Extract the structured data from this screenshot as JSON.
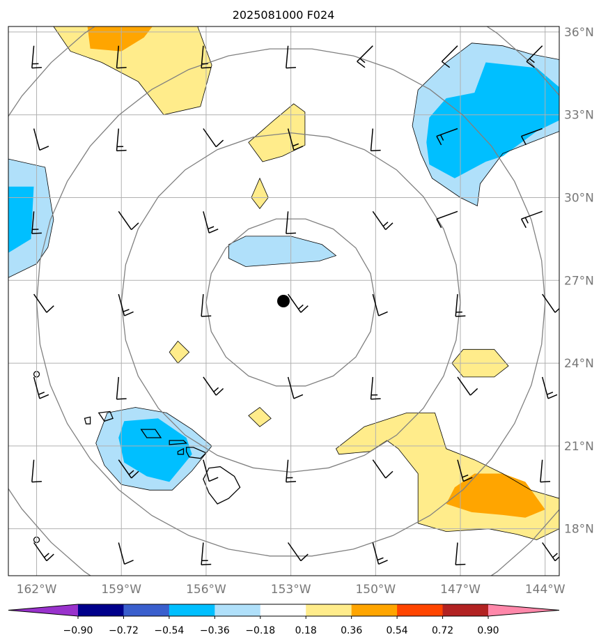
{
  "chart_data": {
    "type": "heatmap",
    "title": "2025081000 F024",
    "map": {
      "lon_range": [
        -163,
        -143.5
      ],
      "lat_range": [
        16.3,
        36.2
      ],
      "center": {
        "lon": -153,
        "lat": 26.2
      },
      "range_rings_deg": [
        3,
        6,
        9,
        12
      ],
      "gridlines": true,
      "lon_ticks": [
        -162,
        -159,
        -156,
        -153,
        -150,
        -147,
        -144
      ],
      "lon_tick_labels": [
        "162°W",
        "159°W",
        "156°W",
        "153°W",
        "150°W",
        "147°W",
        "144°W"
      ],
      "lat_ticks": [
        18,
        21,
        24,
        27,
        30,
        33,
        36
      ],
      "lat_tick_labels": [
        "18°N",
        "21°N",
        "24°N",
        "27°N",
        "30°N",
        "33°N",
        "36°N"
      ]
    },
    "colorbar": {
      "levels": [
        -0.9,
        -0.72,
        -0.54,
        -0.36,
        -0.18,
        0.18,
        0.36,
        0.54,
        0.72,
        0.9
      ],
      "tick_labels": [
        "−0.90",
        "−0.72",
        "−0.54",
        "−0.36",
        "−0.18",
        "0.18",
        "0.36",
        "0.54",
        "0.72",
        "0.90"
      ],
      "colors": [
        "#9932cc",
        "#00008b",
        "#3a5fcd",
        "#00bfff",
        "#b0e0fa",
        "#ffffff",
        "#ffec8b",
        "#ffa500",
        "#ff4500",
        "#b22222",
        "#ff88aa"
      ],
      "extend": "both"
    },
    "filled_regions": [
      {
        "level": 0.18,
        "points": [
          [
            -161.4,
            36.2
          ],
          [
            -160.8,
            35.3
          ],
          [
            -159.7,
            34.9
          ],
          [
            -158.4,
            34.2
          ],
          [
            -157.5,
            33.0
          ],
          [
            -156.2,
            33.3
          ],
          [
            -155.8,
            34.8
          ],
          [
            -156.3,
            36.2
          ]
        ]
      },
      {
        "level": 0.36,
        "points": [
          [
            -160.2,
            36.2
          ],
          [
            -160.1,
            35.4
          ],
          [
            -159.0,
            35.3
          ],
          [
            -158.2,
            35.8
          ],
          [
            -157.9,
            36.2
          ]
        ]
      },
      {
        "level": 0.18,
        "points": [
          [
            -154.5,
            32.0
          ],
          [
            -153.6,
            32.8
          ],
          [
            -152.9,
            33.4
          ],
          [
            -152.5,
            33.1
          ],
          [
            -152.5,
            31.9
          ],
          [
            -153.3,
            31.5
          ],
          [
            -154.0,
            31.3
          ]
        ]
      },
      {
        "level": 0.18,
        "points": [
          [
            -154.4,
            30.0
          ],
          [
            -154.1,
            30.7
          ],
          [
            -153.8,
            30.0
          ],
          [
            -154.1,
            29.6
          ]
        ]
      },
      {
        "level": -0.18,
        "points": [
          [
            -163,
            31.4
          ],
          [
            -161.7,
            31.1
          ],
          [
            -161.4,
            29.2
          ],
          [
            -161.6,
            28.2
          ],
          [
            -162.0,
            27.6
          ],
          [
            -163,
            27.1
          ]
        ]
      },
      {
        "level": -0.36,
        "points": [
          [
            -163,
            30.4
          ],
          [
            -162.1,
            30.4
          ],
          [
            -162.2,
            28.5
          ],
          [
            -163,
            28.0
          ]
        ]
      },
      {
        "level": -0.18,
        "points": [
          [
            -155.2,
            28.3
          ],
          [
            -154.6,
            28.6
          ],
          [
            -153.0,
            28.6
          ],
          [
            -151.9,
            28.3
          ],
          [
            -151.4,
            27.9
          ],
          [
            -152.0,
            27.7
          ],
          [
            -153.3,
            27.6
          ],
          [
            -154.6,
            27.5
          ],
          [
            -155.2,
            27.8
          ]
        ]
      },
      {
        "level": -0.18,
        "points": [
          [
            -148.5,
            33.9
          ],
          [
            -147.5,
            34.9
          ],
          [
            -146.6,
            35.6
          ],
          [
            -145.5,
            35.5
          ],
          [
            -144.5,
            35.2
          ],
          [
            -143.5,
            35.0
          ],
          [
            -143.5,
            32.4
          ],
          [
            -144.5,
            32.0
          ],
          [
            -145.5,
            31.6
          ],
          [
            -146.3,
            30.5
          ],
          [
            -146.4,
            29.7
          ],
          [
            -147.0,
            30.0
          ],
          [
            -148.0,
            30.7
          ],
          [
            -148.4,
            31.6
          ],
          [
            -148.7,
            32.6
          ]
        ]
      },
      {
        "level": -0.36,
        "points": [
          [
            -148.1,
            32.9
          ],
          [
            -147.5,
            33.6
          ],
          [
            -146.5,
            33.8
          ],
          [
            -146.1,
            34.9
          ],
          [
            -144.3,
            34.7
          ],
          [
            -143.5,
            34.0
          ],
          [
            -143.5,
            32.8
          ],
          [
            -144.3,
            32.4
          ],
          [
            -145.5,
            31.5
          ],
          [
            -146.1,
            31.3
          ],
          [
            -147.2,
            30.7
          ],
          [
            -148.1,
            31.2
          ],
          [
            -148.2,
            32.0
          ]
        ]
      },
      {
        "level": 0.18,
        "points": [
          [
            -147.3,
            24.0
          ],
          [
            -146.9,
            24.5
          ],
          [
            -145.8,
            24.5
          ],
          [
            -145.3,
            23.9
          ],
          [
            -145.8,
            23.5
          ],
          [
            -146.9,
            23.5
          ]
        ]
      },
      {
        "level": 0.18,
        "points": [
          [
            -157.3,
            24.4
          ],
          [
            -157.0,
            24.8
          ],
          [
            -156.6,
            24.4
          ],
          [
            -157.0,
            24.0
          ]
        ]
      },
      {
        "level": 0.18,
        "points": [
          [
            -154.5,
            22.1
          ],
          [
            -154.1,
            22.4
          ],
          [
            -153.7,
            22.0
          ],
          [
            -154.1,
            21.7
          ]
        ]
      },
      {
        "level": -0.18,
        "points": [
          [
            -159.5,
            22.2
          ],
          [
            -158.5,
            22.4
          ],
          [
            -157.4,
            22.2
          ],
          [
            -156.5,
            21.6
          ],
          [
            -155.8,
            21.0
          ],
          [
            -156.5,
            20.1
          ],
          [
            -157.2,
            19.4
          ],
          [
            -158.0,
            19.4
          ],
          [
            -159.0,
            19.6
          ],
          [
            -159.6,
            20.3
          ],
          [
            -159.9,
            21.1
          ]
        ]
      },
      {
        "level": -0.36,
        "points": [
          [
            -158.9,
            21.9
          ],
          [
            -157.7,
            22.0
          ],
          [
            -156.7,
            21.3
          ],
          [
            -156.5,
            20.7
          ],
          [
            -157.3,
            19.7
          ],
          [
            -158.1,
            19.9
          ],
          [
            -158.9,
            20.4
          ],
          [
            -159.1,
            21.3
          ]
        ]
      },
      {
        "level": 0.18,
        "points": [
          [
            -151.4,
            20.9
          ],
          [
            -150.4,
            21.7
          ],
          [
            -148.9,
            22.2
          ],
          [
            -147.9,
            22.2
          ],
          [
            -147.5,
            20.9
          ],
          [
            -146.5,
            20.5
          ],
          [
            -145.5,
            20.0
          ],
          [
            -144.5,
            19.4
          ],
          [
            -143.5,
            19.1
          ],
          [
            -143.5,
            18.0
          ],
          [
            -144.3,
            17.6
          ],
          [
            -145.0,
            17.8
          ],
          [
            -146.0,
            18.0
          ],
          [
            -147.5,
            17.9
          ],
          [
            -148.5,
            18.2
          ],
          [
            -148.5,
            20.0
          ],
          [
            -149.2,
            20.9
          ],
          [
            -149.6,
            21.2
          ],
          [
            -150.2,
            20.8
          ],
          [
            -151.3,
            20.7
          ]
        ]
      },
      {
        "level": 0.36,
        "points": [
          [
            -147.2,
            19.5
          ],
          [
            -146.5,
            20.0
          ],
          [
            -145.5,
            20.0
          ],
          [
            -144.7,
            19.7
          ],
          [
            -144.0,
            18.7
          ],
          [
            -144.7,
            18.4
          ],
          [
            -145.5,
            18.5
          ],
          [
            -146.6,
            18.6
          ],
          [
            -147.5,
            18.9
          ]
        ]
      }
    ]
  }
}
